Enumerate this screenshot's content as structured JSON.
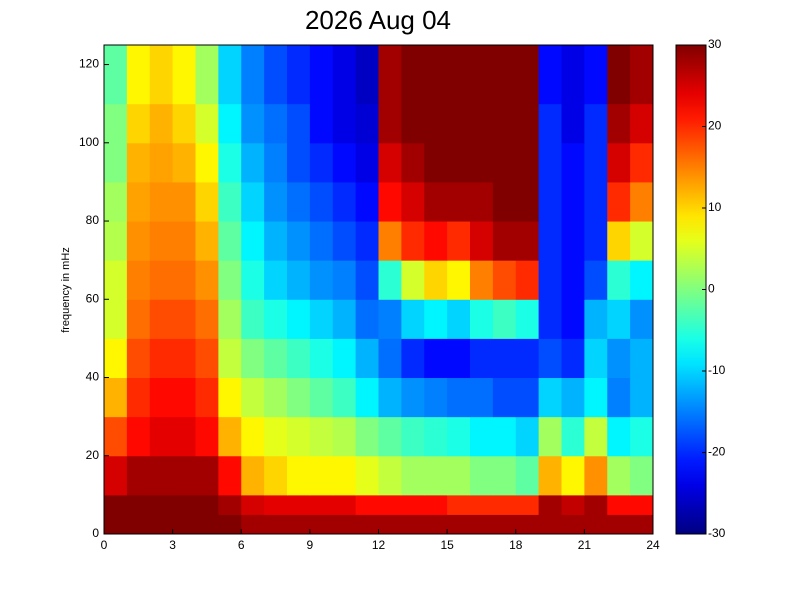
{
  "chart_data": {
    "type": "heatmap",
    "title": "2026 Aug 04",
    "y_label": "frequency in mHz",
    "xbins": [
      0,
      1,
      2,
      3,
      4,
      5,
      6,
      7,
      8,
      9,
      10,
      11,
      12,
      13,
      14,
      15,
      16,
      17,
      18,
      19,
      20,
      21,
      22,
      23,
      24
    ],
    "ybins": [
      0,
      5,
      10,
      20,
      30,
      40,
      50,
      60,
      70,
      80,
      90,
      100,
      110,
      125
    ],
    "z": [
      [
        30,
        30,
        30,
        30,
        30,
        30,
        28,
        28,
        28,
        28,
        28,
        28,
        28,
        28,
        28,
        28,
        28,
        28,
        28,
        28,
        28,
        28,
        28,
        28
      ],
      [
        30,
        30,
        30,
        30,
        30,
        28,
        25,
        24,
        24,
        24,
        24,
        22,
        22,
        22,
        22,
        20,
        20,
        20,
        20,
        28,
        26,
        28,
        22,
        22
      ],
      [
        25,
        28,
        28,
        28,
        28,
        22,
        12,
        10,
        8,
        8,
        8,
        6,
        4,
        2,
        2,
        2,
        0,
        0,
        -2,
        12,
        8,
        14,
        2,
        0
      ],
      [
        18,
        22,
        24,
        24,
        22,
        12,
        8,
        6,
        5,
        4,
        3,
        0,
        -2,
        -4,
        -5,
        -6,
        -8,
        -8,
        -10,
        2,
        -5,
        4,
        -8,
        -6
      ],
      [
        12,
        20,
        22,
        22,
        20,
        8,
        4,
        2,
        0,
        -2,
        -4,
        -8,
        -12,
        -14,
        -15,
        -16,
        -16,
        -18,
        -18,
        -10,
        -12,
        -8,
        -15,
        -12
      ],
      [
        8,
        18,
        20,
        20,
        18,
        4,
        0,
        -2,
        -4,
        -6,
        -8,
        -12,
        -16,
        -20,
        -22,
        -22,
        -20,
        -20,
        -20,
        -18,
        -20,
        -10,
        -14,
        -12
      ],
      [
        5,
        16,
        18,
        18,
        16,
        2,
        -4,
        -6,
        -8,
        -10,
        -12,
        -16,
        -15,
        -10,
        -8,
        -10,
        -6,
        -4,
        -6,
        -20,
        -22,
        -12,
        -10,
        -14
      ],
      [
        5,
        15,
        16,
        16,
        14,
        0,
        -6,
        -10,
        -12,
        -14,
        -15,
        -18,
        -5,
        5,
        10,
        8,
        15,
        18,
        20,
        -20,
        -22,
        -18,
        -5,
        -8
      ],
      [
        3,
        14,
        15,
        15,
        12,
        -2,
        -8,
        -12,
        -14,
        -16,
        -18,
        -20,
        15,
        20,
        22,
        20,
        25,
        28,
        28,
        -20,
        -22,
        -20,
        10,
        5
      ],
      [
        2,
        13,
        14,
        14,
        10,
        -4,
        -10,
        -14,
        -16,
        -18,
        -20,
        -22,
        22,
        25,
        28,
        28,
        28,
        30,
        30,
        -20,
        -22,
        -20,
        20,
        15
      ],
      [
        0,
        12,
        13,
        12,
        8,
        -6,
        -12,
        -15,
        -18,
        -20,
        -22,
        -24,
        25,
        28,
        30,
        30,
        30,
        30,
        30,
        -20,
        -22,
        -20,
        25,
        20
      ],
      [
        0,
        10,
        12,
        10,
        5,
        -8,
        -14,
        -16,
        -18,
        -22,
        -24,
        -25,
        28,
        30,
        30,
        30,
        30,
        30,
        30,
        -20,
        -24,
        -20,
        28,
        25
      ],
      [
        -2,
        8,
        10,
        8,
        2,
        -10,
        -15,
        -18,
        -20,
        -22,
        -24,
        -26,
        28,
        30,
        30,
        30,
        30,
        30,
        30,
        -22,
        -24,
        -22,
        30,
        28
      ]
    ],
    "xlim": [
      0,
      24
    ],
    "xticks": [
      0,
      3,
      6,
      9,
      12,
      15,
      18,
      21,
      24
    ],
    "ylim": [
      0,
      125
    ],
    "yticks": [
      0,
      20,
      40,
      60,
      80,
      100,
      120
    ],
    "clim": [
      -30,
      30
    ],
    "cticks": [
      -30,
      -20,
      -10,
      0,
      10,
      20,
      30
    ],
    "colormap": "jet"
  }
}
